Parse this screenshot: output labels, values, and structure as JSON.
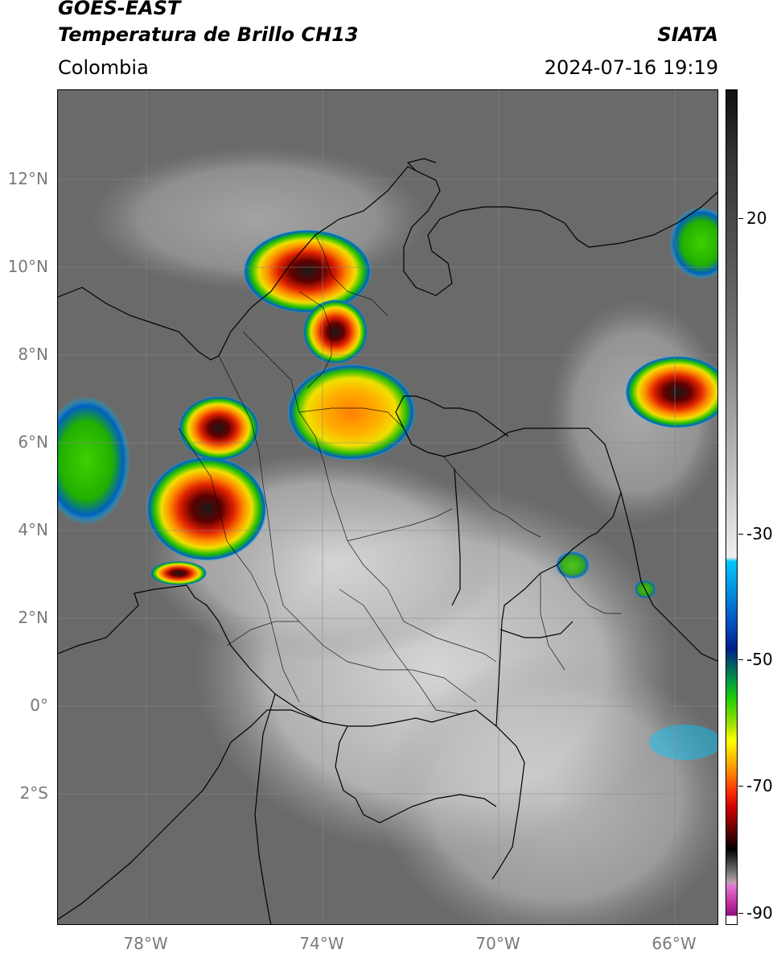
{
  "header": {
    "satellite": "GOES-EAST",
    "product": "Temperatura de Brillo CH13",
    "agency": "SIATA",
    "region": "Colombia",
    "datetime": "2024-07-16 19:19"
  },
  "axes": {
    "lat_labels": [
      "12°N",
      "10°N",
      "8°N",
      "6°N",
      "4°N",
      "2°N",
      "0°",
      "2°S"
    ],
    "lon_labels": [
      "78°W",
      "74°W",
      "70°W",
      "66°W"
    ],
    "lon_range": [
      -80,
      -65
    ],
    "lat_range": [
      -4.9,
      14.0
    ]
  },
  "colorbar": {
    "labels": [
      "20",
      "-30",
      "-50",
      "-70",
      "-90"
    ],
    "values": [
      20,
      -30,
      -50,
      -70,
      -90
    ]
  }
}
